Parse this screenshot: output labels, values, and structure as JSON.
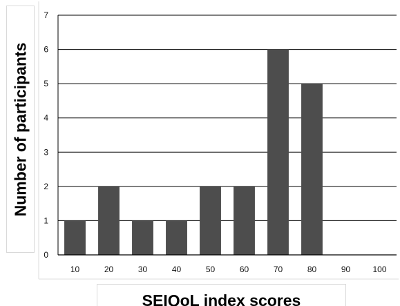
{
  "chart_data": {
    "type": "bar",
    "xlabel": "SEIQoL index scores",
    "ylabel": "Number of participants",
    "categories": [
      "10",
      "20",
      "30",
      "40",
      "50",
      "60",
      "70",
      "80",
      "90",
      "100"
    ],
    "values": [
      1,
      2,
      1,
      1,
      2,
      2,
      6,
      5,
      0,
      0
    ],
    "ylim": [
      0,
      7
    ],
    "yticks": [
      "0",
      "1",
      "2",
      "3",
      "4",
      "5",
      "6",
      "7"
    ],
    "grid": true,
    "legend": "none",
    "bar_color": "#4d4d4d"
  }
}
